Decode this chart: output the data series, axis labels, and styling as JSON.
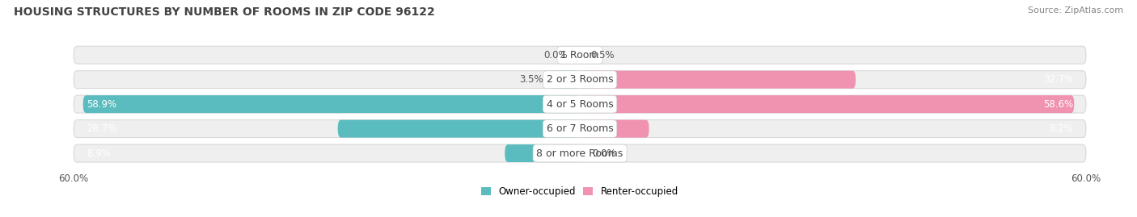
{
  "title": "HOUSING STRUCTURES BY NUMBER OF ROOMS IN ZIP CODE 96122",
  "source": "Source: ZipAtlas.com",
  "categories": [
    "1 Room",
    "2 or 3 Rooms",
    "4 or 5 Rooms",
    "6 or 7 Rooms",
    "8 or more Rooms"
  ],
  "owner_values": [
    0.0,
    3.5,
    58.9,
    28.7,
    8.9
  ],
  "renter_values": [
    0.5,
    32.7,
    58.6,
    8.2,
    0.0
  ],
  "max_val": 60.0,
  "owner_color": "#5bbcbf",
  "renter_color": "#f093b0",
  "bar_bg_color": "#efefef",
  "title_color": "#444444",
  "figure_bg": "#ffffff",
  "legend_owner": "Owner-occupied",
  "legend_renter": "Renter-occupied"
}
